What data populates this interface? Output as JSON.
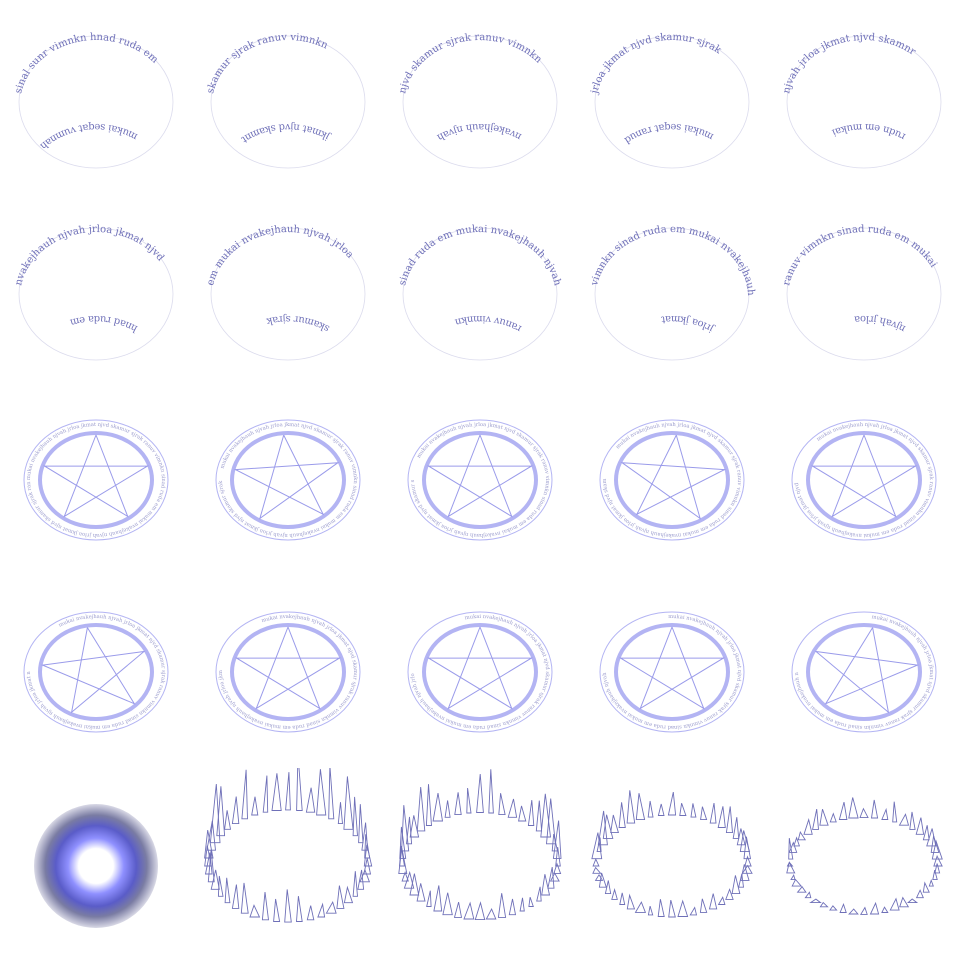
{
  "sprite_sheet": {
    "rows": 5,
    "columns": 5,
    "ink_color": "#6f70b8",
    "glow_color": "#b3b4f3",
    "rune_ring_frames": [
      {
        "top": "sinal sunr vimnkn hnad ruda em",
        "bottom": "mukai seqat vumnah"
      },
      {
        "top": "skamur sjrak ranuv vimnkn",
        "bottom": "jkmat njvd skamnt"
      },
      {
        "top": "njvd skamur sjrak ranuv vimnkn",
        "bottom": "nvakejhauh njvah"
      },
      {
        "top": "jrloa jkmat njvd skamur sjrak",
        "bottom": "mukai seqat ranud"
      },
      {
        "top": "njvah jrloa jkmat njvd skamnr",
        "bottom": "rudn em mukai"
      },
      {
        "top": "nvakejhauh njvah jrloa jkmat njvd",
        "bottom": "hnad ruda em"
      },
      {
        "top": "em mukai nvakejhauh njvah jrloa",
        "bottom": "skamur sjrak"
      },
      {
        "top": "sinad ruda em mukai nvakejhauh njvah",
        "bottom": "ranuv vimnkn"
      },
      {
        "top": "vimnkn sinad ruda em mukai nvakejhauh",
        "bottom": "jrloa jkmat"
      },
      {
        "top": "ranuv vimnkn sinad ruda em mukai",
        "bottom": "njvah jrloa"
      }
    ],
    "pentagram_text": "mukai nvakejhauh njvah jrloa jkmat njvd skamur sjrak ranuv vimnkn sinad ruda em mukai nvakejhauh njvah jrloa jkmat njvd skamur sjrak ranuv vimnkn sinad ruda em",
    "pentagram_frame_count": 10,
    "flare_frame_count": 4
  }
}
